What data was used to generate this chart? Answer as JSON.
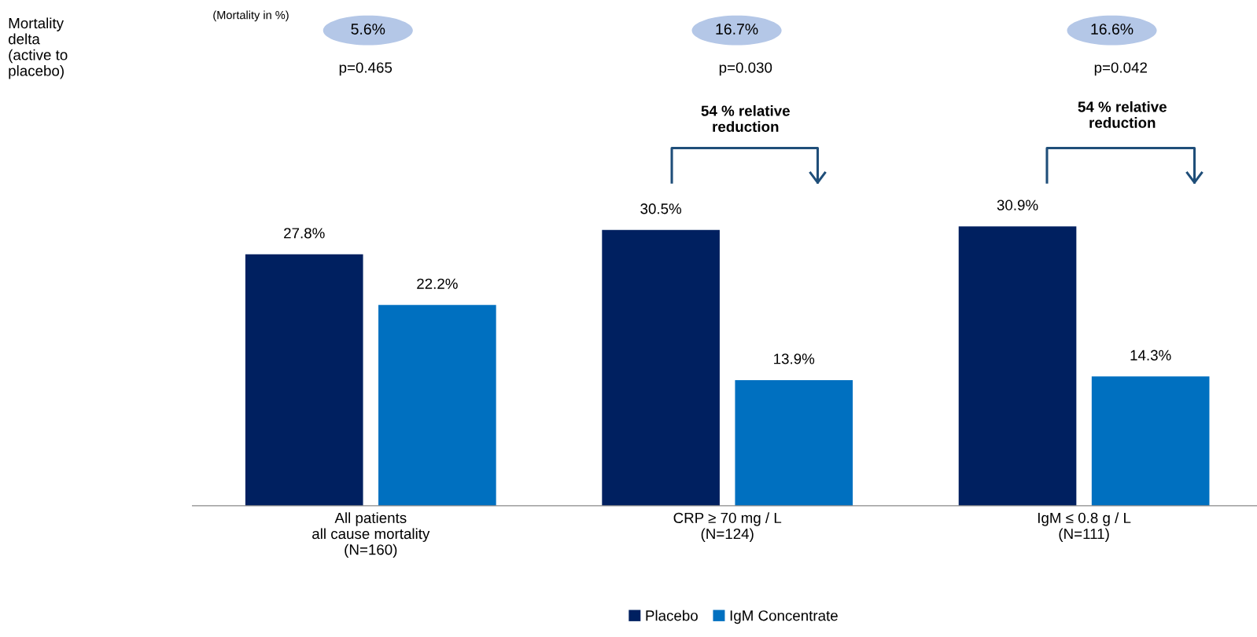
{
  "chart_data": {
    "type": "bar",
    "categories": [
      "All patients\nall cause mortality\n(N=160)",
      "CRP ≥ 70 mg / L\n(N=124)",
      "IgM ≤ 0.8 g / L\n(N=111)"
    ],
    "series": [
      {
        "name": "Placebo",
        "color": "#002060",
        "values": [
          27.8,
          30.5,
          30.9
        ],
        "value_labels": [
          "27.8%",
          "30.5%",
          "30.9%"
        ]
      },
      {
        "name": "IgM Concentrate",
        "color": "#0070c0",
        "values": [
          22.2,
          13.9,
          14.3
        ],
        "value_labels": [
          "22.2%",
          "13.9%",
          "14.3%"
        ]
      }
    ],
    "legend": "bottom",
    "annotations": [
      "Mortality\ndelta\n(active to\nplacebo)",
      "(Mortality in %)",
      "5.6%",
      "16.7%",
      "16.6%",
      "p=0.465",
      "p=0.030",
      "p=0.042",
      "54 % relative\nreduction",
      "54 % relative\nreduction"
    ]
  }
}
